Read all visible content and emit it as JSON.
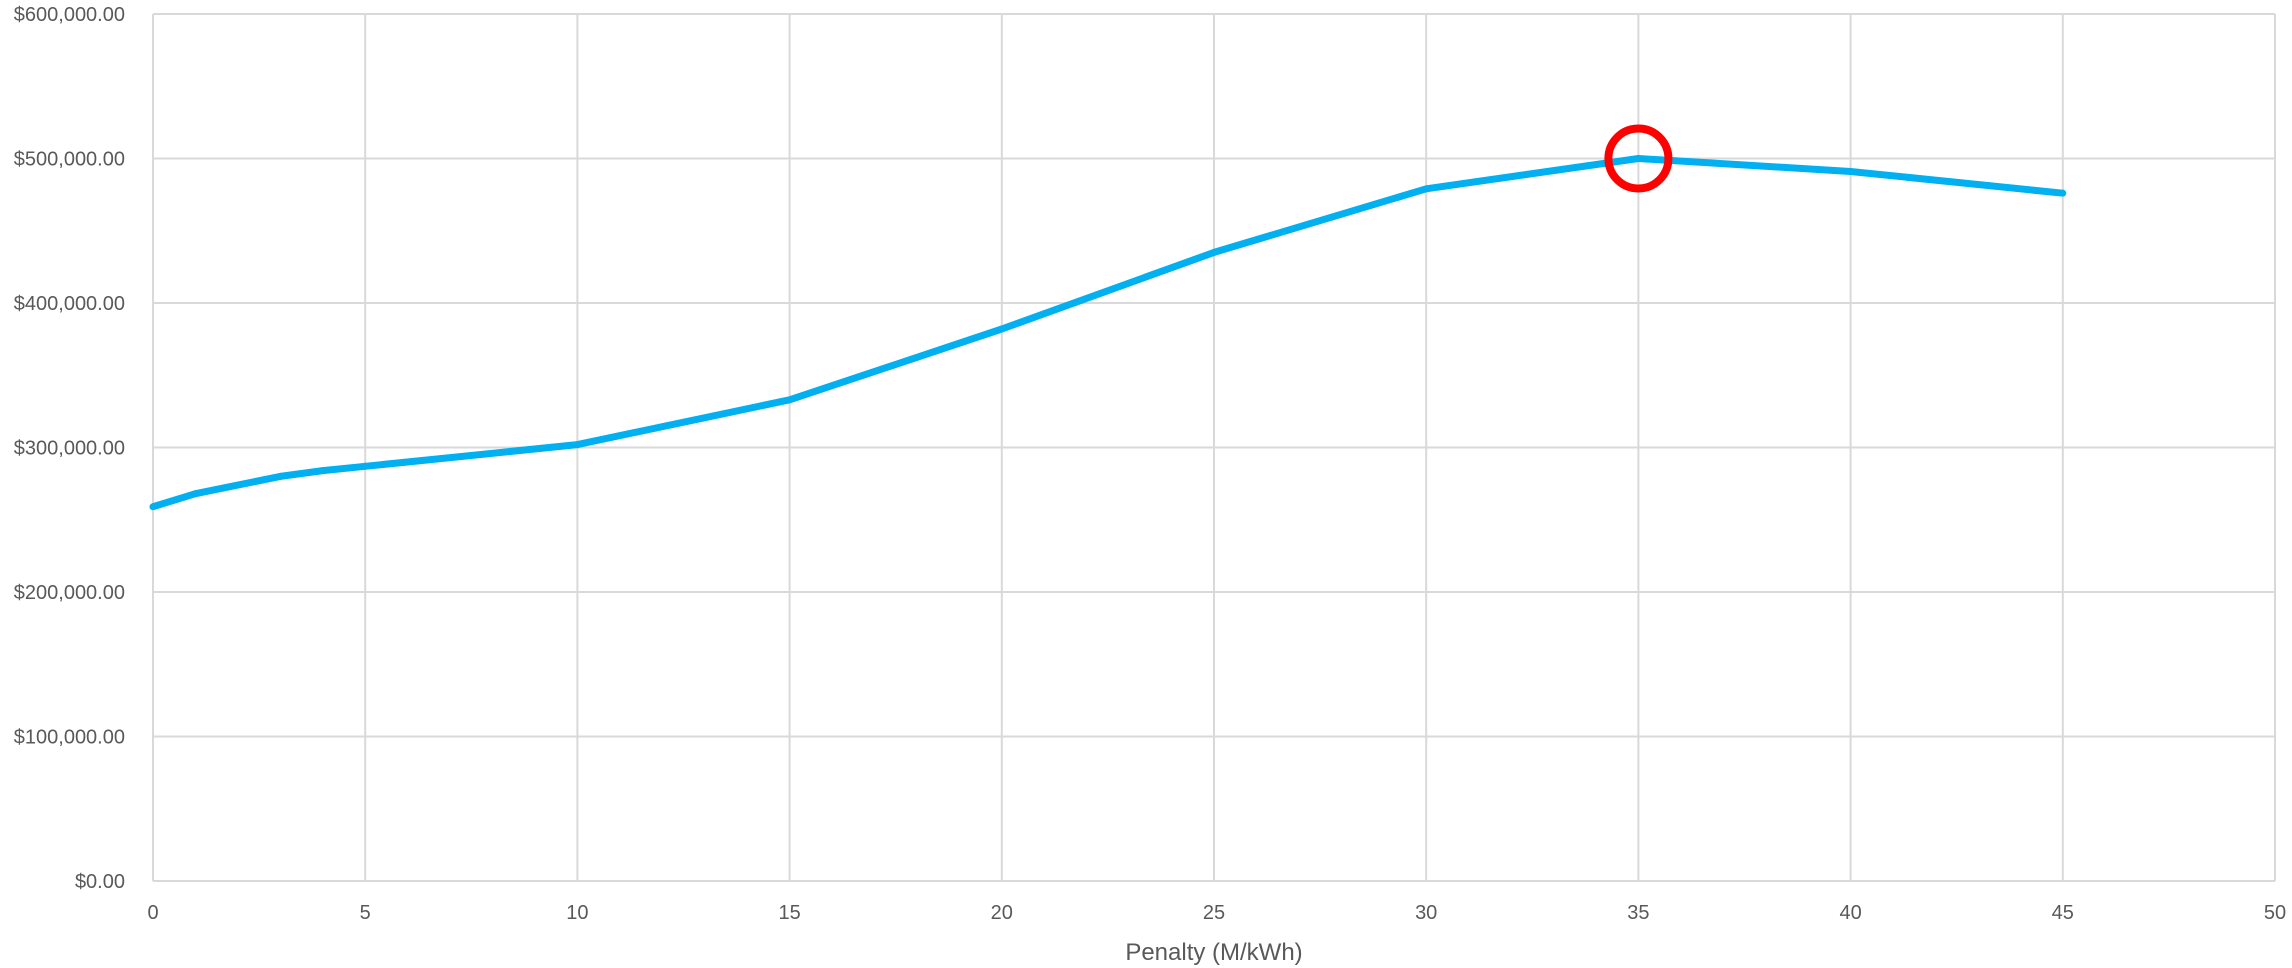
{
  "chart_data": {
    "type": "line",
    "xlabel": "Penalty (M/kWh)",
    "ylabel": "",
    "title": "",
    "xlim": [
      0,
      50
    ],
    "ylim": [
      0,
      600000
    ],
    "x_ticks": [
      0,
      5,
      10,
      15,
      20,
      25,
      30,
      35,
      40,
      45,
      50
    ],
    "x_tick_labels": [
      "0",
      "5",
      "10",
      "15",
      "20",
      "25",
      "30",
      "35",
      "40",
      "45",
      "50"
    ],
    "y_ticks": [
      0,
      100000,
      200000,
      300000,
      400000,
      500000,
      600000
    ],
    "y_tick_labels": [
      "$0.00",
      "$100,000.00",
      "$200,000.00",
      "$300,000.00",
      "$400,000.00",
      "$500,000.00",
      "$600,000.00"
    ],
    "grid": true,
    "series": [
      {
        "color": "#00b0f0",
        "x": [
          0,
          1,
          3,
          4,
          5,
          10,
          15,
          20,
          25,
          30,
          35,
          40,
          45
        ],
        "values": [
          259000,
          268000,
          280000,
          284000,
          287000,
          302000,
          333000,
          382000,
          435000,
          479000,
          500000,
          491000,
          476000
        ]
      }
    ],
    "highlight": {
      "x": 35,
      "value": 500000,
      "shape": "circle",
      "color": "#ff0000"
    }
  }
}
